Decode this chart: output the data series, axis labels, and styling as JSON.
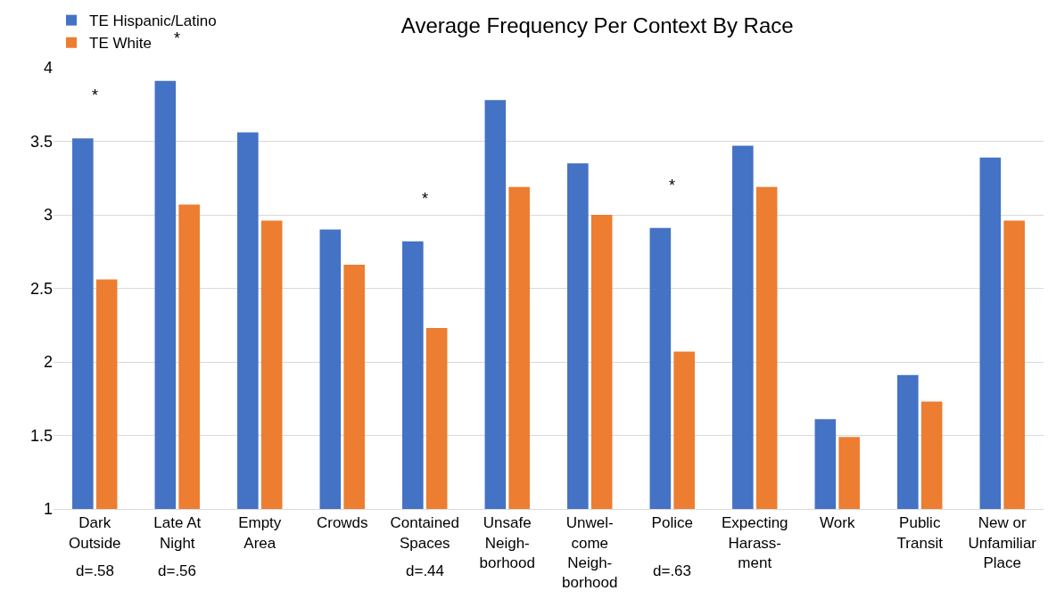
{
  "chart_data": {
    "type": "bar",
    "title": "Average Frequency Per Context By Race",
    "categories": [
      "Dark\nOutside",
      "Late At\nNight",
      "Empty\nArea",
      "Crowds",
      "Contained\nSpaces",
      "Unsafe\nNeigh-\nborhood",
      "Unwel-\ncome\nNeigh-\nborhood",
      "Police",
      "Expecting\nHarass-\nment",
      "Work",
      "Public\nTransit",
      "New or\nUnfamiliar\nPlace"
    ],
    "series": [
      {
        "name": "TE Hispanic/Latino",
        "color": "#4472c4",
        "values": [
          3.52,
          3.91,
          3.56,
          2.9,
          2.82,
          3.78,
          3.35,
          2.91,
          3.47,
          1.61,
          1.91,
          3.39
        ]
      },
      {
        "name": "TE White",
        "color": "#ed7d31",
        "values": [
          2.56,
          3.07,
          2.96,
          2.66,
          2.23,
          3.19,
          3.0,
          2.07,
          3.19,
          1.49,
          1.73,
          2.96
        ]
      }
    ],
    "ylim": [
      1,
      4
    ],
    "yticks": [
      1,
      1.5,
      2,
      2.5,
      3,
      3.5,
      4
    ],
    "grid": "y",
    "legend": "top left",
    "annotations": [
      {
        "text": "*",
        "x": "Dark\nOutside",
        "y": 3.52
      },
      {
        "text": "*",
        "x": "Late At\nNight",
        "y": 3.91
      },
      {
        "text": "*",
        "x": "Contained\nSpaces",
        "y": 2.82
      },
      {
        "text": "*",
        "x": "Police",
        "y": 2.91
      },
      {
        "text": "d=.58",
        "x": "Dark\nOutside"
      },
      {
        "text": "d=.56",
        "x": "Late At\nNight"
      },
      {
        "text": "d=.44",
        "x": "Contained\nSpaces"
      },
      {
        "text": "d=.63",
        "x": "Police"
      }
    ]
  }
}
